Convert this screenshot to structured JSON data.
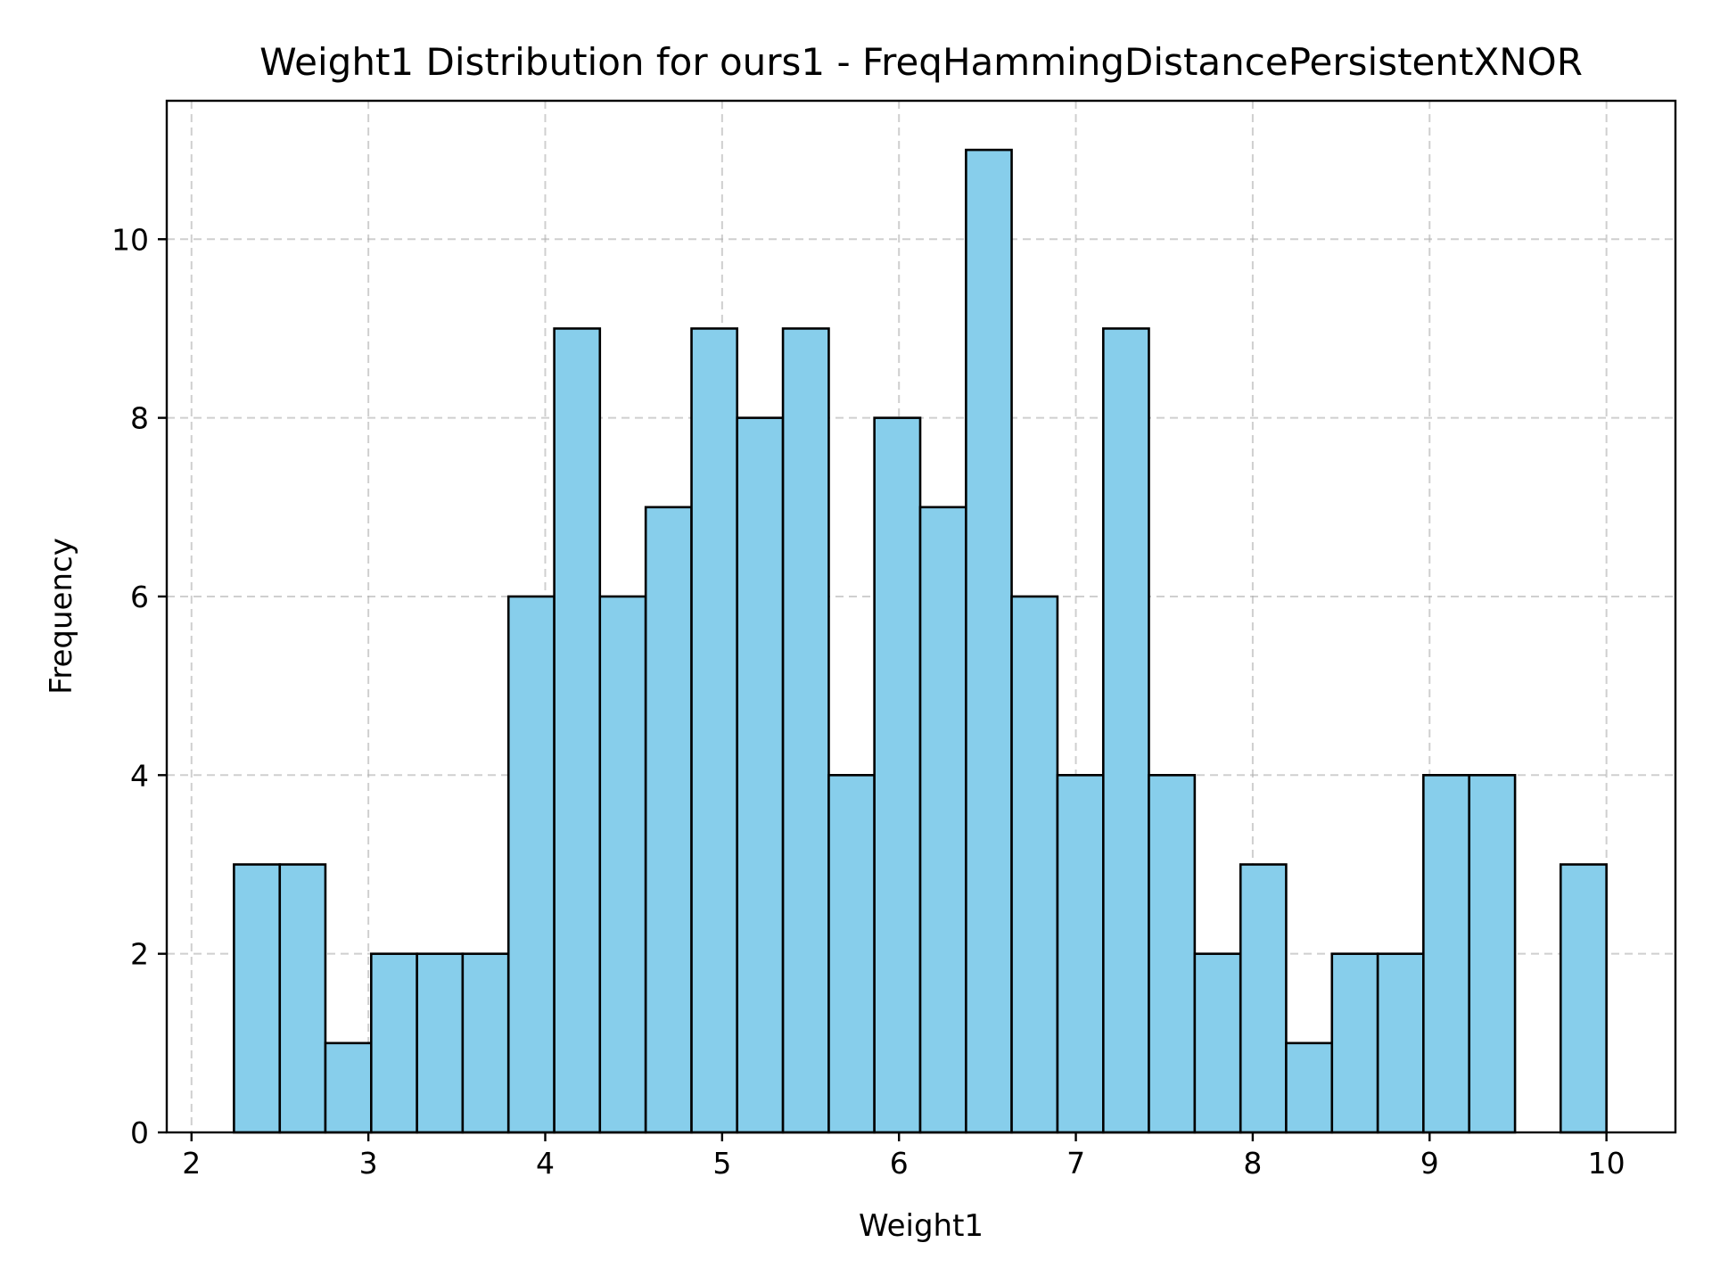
{
  "chart_data": {
    "type": "bar",
    "title": "Weight1 Distribution for ours1 - FreqHammingDistancePersistentXNOR",
    "xlabel": "Weight1",
    "ylabel": "Frequency",
    "xlim": [
      1.86,
      10.39
    ],
    "ylim": [
      0,
      11.55
    ],
    "xticks": [
      2,
      3,
      4,
      5,
      6,
      7,
      8,
      9,
      10
    ],
    "yticks": [
      0,
      2,
      4,
      6,
      8,
      10
    ],
    "grid": true,
    "bins": {
      "start": 2.24,
      "end": 10.0,
      "edges": [
        2.24,
        2.499,
        2.757,
        3.016,
        3.275,
        3.533,
        3.792,
        4.051,
        4.309,
        4.568,
        4.827,
        5.085,
        5.344,
        5.603,
        5.861,
        6.12,
        6.379,
        6.637,
        6.896,
        7.155,
        7.413,
        7.672,
        7.931,
        8.189,
        8.448,
        8.707,
        8.965,
        9.224,
        9.483,
        9.741,
        10.0
      ]
    },
    "values": [
      3,
      3,
      1,
      2,
      2,
      2,
      6,
      9,
      6,
      7,
      9,
      8,
      9,
      4,
      8,
      7,
      11,
      6,
      4,
      9,
      4,
      2,
      3,
      1,
      2,
      2,
      4,
      4,
      0,
      3
    ],
    "colors": {
      "bar_fill": "#87CEEB",
      "bar_edge": "#000000",
      "grid": "#b0b0b0"
    }
  }
}
